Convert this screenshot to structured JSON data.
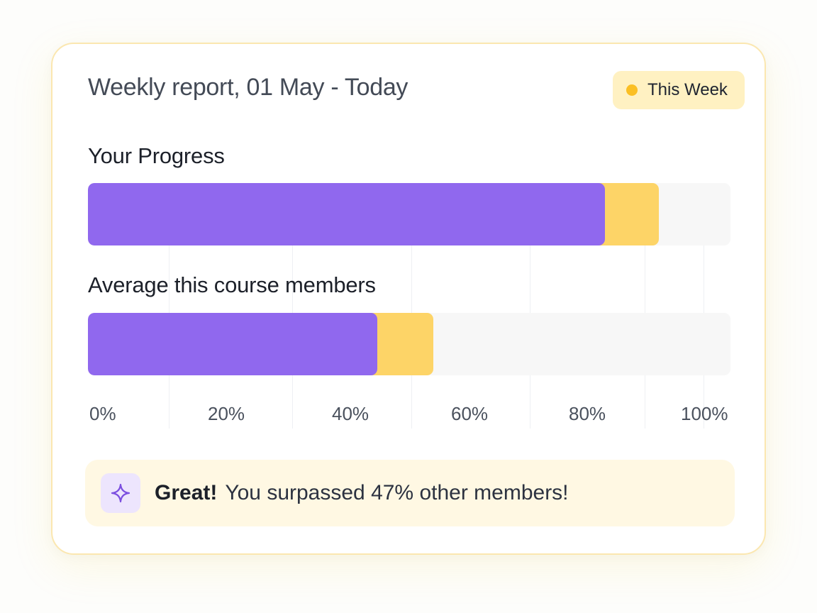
{
  "card": {
    "title": "Weekly report, 01 May - Today",
    "period_badge": {
      "label": "This Week",
      "dot_color": "#fbbf24"
    }
  },
  "colors": {
    "primary": "#9068ee",
    "secondary": "#fdd467",
    "track": "#f7f7f7"
  },
  "chart_data": {
    "type": "bar",
    "orientation": "horizontal",
    "stacked": true,
    "xlim": [
      0,
      100
    ],
    "xticks": [
      "0%",
      "20%",
      "40%",
      "60%",
      "80%",
      "100%"
    ],
    "bars": [
      {
        "label": "Your Progress",
        "primary": 80.5,
        "total": 88.8
      },
      {
        "label": "Average this course members",
        "primary": 45,
        "total": 53.8
      }
    ]
  },
  "callout": {
    "icon": "sparkle-icon",
    "strong": "Great!",
    "text": "You surpassed 47% other members!"
  }
}
